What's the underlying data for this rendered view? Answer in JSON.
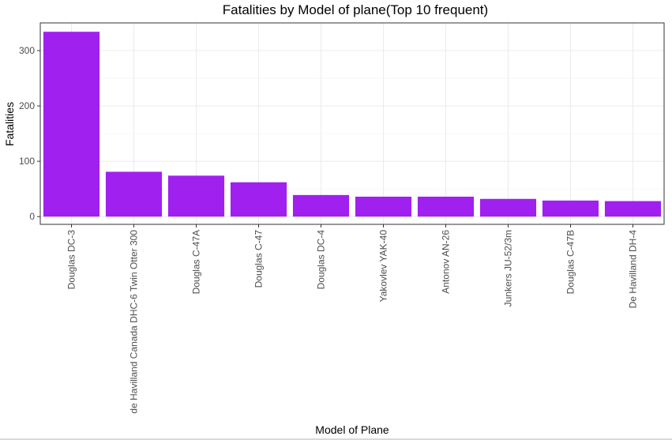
{
  "chart_data": {
    "type": "bar",
    "title": "Fatalities by Model of plane(Top 10 frequent)",
    "xlabel": "Model of Plane",
    "ylabel": "Fatalities",
    "categories": [
      "Douglas DC-3",
      "de Havilland Canada DHC-6 Twin Otter 300",
      "Douglas C-47A",
      "Douglas C-47",
      "Douglas DC-4",
      "Yakovlev YAK-40",
      "Antonov AN-26",
      "Junkers JU-52/3m",
      "Douglas C-47B",
      "De Havilland DH-4"
    ],
    "values": [
      334,
      81,
      74,
      62,
      39,
      36,
      36,
      32,
      29,
      28
    ],
    "yticks": [
      0,
      100,
      200,
      300
    ],
    "ylim": [
      -14,
      350
    ],
    "bar_color": "#a020f0",
    "grid": true
  }
}
